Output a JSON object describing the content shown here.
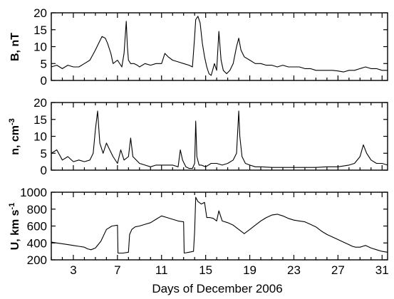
{
  "chart_data": [
    {
      "type": "line",
      "ylabel": "B, nT",
      "ylim": [
        0,
        20
      ],
      "yticks": [
        "0",
        "5",
        "10",
        "15",
        "20"
      ],
      "xlim": [
        1,
        31.5
      ],
      "grid": false,
      "series": [
        {
          "x": [
            1,
            1.5,
            2,
            2.5,
            3,
            3.5,
            4,
            4.5,
            5,
            5.3,
            5.6,
            5.9,
            6.1,
            6.4,
            6.6,
            7,
            7.4,
            7.6,
            7.8,
            7.9,
            8.0,
            8.2,
            8.5,
            8.8,
            9,
            9.5,
            10,
            10.5,
            11,
            11.3,
            11.6,
            12,
            12.5,
            13,
            13.5,
            13.8,
            14,
            14.1,
            14.3,
            14.5,
            14.7,
            14.9,
            15.1,
            15.3,
            15.5,
            15.8,
            16,
            16.2,
            16.4,
            16.6,
            16.9,
            17.2,
            17.5,
            17.8,
            18,
            18.2,
            18.5,
            19,
            19.5,
            20,
            20.5,
            21,
            21.5,
            22,
            22.5,
            23,
            23.5,
            24,
            24.5,
            25,
            25.5,
            26,
            26.5,
            27,
            27.5,
            28,
            28.5,
            29,
            29.5,
            30,
            30.5,
            31,
            31.5
          ],
          "values": [
            4,
            4.5,
            3.5,
            4.5,
            4,
            4,
            5,
            6,
            9,
            11,
            13,
            12.5,
            11,
            8,
            5,
            6,
            4,
            8,
            17.5,
            10,
            6,
            5,
            5,
            4.5,
            4,
            5,
            4.5,
            5,
            5,
            8,
            7,
            6,
            5.5,
            5,
            4.5,
            4,
            13,
            18,
            19,
            17,
            11,
            7,
            4,
            2,
            1.5,
            5,
            3,
            14.5,
            6,
            3,
            2,
            3,
            5,
            10,
            12.5,
            9,
            7,
            6,
            5,
            5,
            4.5,
            4.5,
            4,
            4.5,
            4,
            4,
            4,
            3.5,
            3.5,
            3,
            3,
            3,
            3,
            2.8,
            2.5,
            3,
            3,
            3.5,
            4,
            3.5,
            3.5,
            3,
            3
          ]
        }
      ]
    },
    {
      "type": "line",
      "ylabel": "n, cm",
      "ylabel_sup": "-3",
      "ylim": [
        0,
        20
      ],
      "yticks": [
        "0",
        "5",
        "10",
        "15",
        "20"
      ],
      "xlim": [
        1,
        31.5
      ],
      "grid": false,
      "series": [
        {
          "x": [
            1,
            1.5,
            2,
            2.5,
            3,
            3.5,
            4,
            4.5,
            4.8,
            5,
            5.2,
            5.4,
            5.7,
            6,
            6.3,
            6.6,
            7,
            7.3,
            7.6,
            8,
            8.2,
            8.4,
            8.7,
            9,
            9.5,
            10,
            10.5,
            11,
            11.5,
            12,
            12.5,
            12.7,
            12.9,
            13.2,
            13.5,
            13.8,
            14,
            14.1,
            14.2,
            14.4,
            14.6,
            15,
            15.5,
            16,
            16.5,
            17,
            17.5,
            17.8,
            18,
            18.1,
            18.3,
            18.6,
            19,
            19.5,
            20,
            21,
            22,
            23,
            24,
            25,
            26,
            27,
            28,
            28.5,
            29,
            29.3,
            29.6,
            30,
            30.5,
            31,
            31.5
          ],
          "values": [
            5,
            6,
            3,
            4,
            2.5,
            3,
            2.5,
            3,
            5,
            12,
            17.5,
            8,
            5,
            8,
            6,
            4,
            2,
            6,
            3,
            4,
            9.5,
            4,
            3,
            2,
            1.5,
            1,
            1.5,
            1.5,
            1.5,
            1.5,
            1,
            6,
            3,
            1,
            0.5,
            0.5,
            2,
            14.5,
            4,
            1.5,
            1.5,
            1,
            2,
            2,
            1.5,
            2,
            3,
            5,
            17.5,
            10,
            4,
            2,
            1.5,
            1,
            1,
            0.8,
            0.8,
            0.8,
            0.8,
            0.8,
            1,
            1,
            1.5,
            2,
            4,
            7.5,
            5,
            3,
            2,
            2,
            1.5
          ]
        }
      ]
    },
    {
      "type": "line",
      "ylabel": "U, km s",
      "ylabel_sup": "-1",
      "ylim": [
        200,
        1000
      ],
      "yticks": [
        "200",
        "400",
        "600",
        "800",
        "1000"
      ],
      "xlim": [
        1,
        31.5
      ],
      "xticks": [
        3,
        7,
        11,
        15,
        19,
        23,
        27,
        31
      ],
      "xtick_labels": [
        "3",
        "7",
        "11",
        "15",
        "19",
        "23",
        "27",
        "31"
      ],
      "xlabel": "Days of December 2006",
      "grid": false,
      "series": [
        {
          "x": [
            1,
            1.5,
            2,
            2.5,
            3,
            3.5,
            4,
            4.3,
            4.6,
            5,
            5.5,
            6,
            6.5,
            7,
            7.05,
            7.5,
            8,
            8.1,
            8.3,
            8.6,
            9,
            9.5,
            10,
            10.5,
            11,
            11.5,
            12,
            12.5,
            13,
            13.05,
            13.5,
            13.9,
            14,
            14.1,
            14.3,
            14.6,
            14.9,
            15.1,
            15.4,
            15.7,
            16,
            16.2,
            16.5,
            17,
            17.5,
            18,
            18.5,
            19,
            19.5,
            20,
            20.5,
            21,
            21.5,
            22,
            22.5,
            23,
            23.5,
            24,
            24.5,
            25,
            25.5,
            26,
            26.5,
            27,
            27.5,
            28,
            28.3,
            28.6,
            29,
            29.5,
            30,
            30.5,
            31,
            31.5
          ],
          "values": [
            410,
            400,
            390,
            380,
            370,
            360,
            350,
            330,
            320,
            340,
            420,
            560,
            600,
            610,
            280,
            280,
            290,
            500,
            560,
            590,
            600,
            620,
            640,
            680,
            720,
            700,
            680,
            660,
            650,
            280,
            290,
            300,
            540,
            940,
            890,
            860,
            880,
            700,
            700,
            690,
            660,
            780,
            660,
            640,
            610,
            560,
            510,
            560,
            610,
            660,
            700,
            730,
            740,
            720,
            690,
            670,
            660,
            650,
            620,
            590,
            540,
            500,
            470,
            440,
            410,
            380,
            360,
            350,
            350,
            370,
            340,
            320,
            300,
            290
          ]
        }
      ]
    }
  ]
}
